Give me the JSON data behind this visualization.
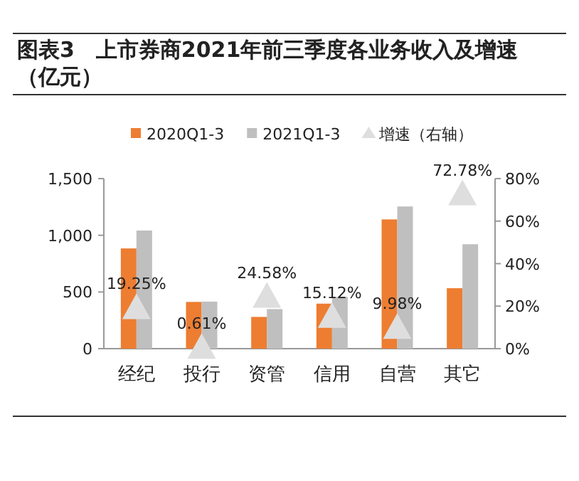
{
  "chart_data": {
    "type": "bar",
    "title": "图表3　上市券商2021年前三季度各业务收入及增速（亿元）",
    "categories": [
      "经纪",
      "投行",
      "资管",
      "信用",
      "自营",
      "其它"
    ],
    "series": [
      {
        "name": "2020Q1-3",
        "color": "#ed7d31",
        "values": [
          884,
          412,
          280,
          397,
          1140,
          533
        ]
      },
      {
        "name": "2021Q1-3",
        "color": "#bfbfbf",
        "values": [
          1042,
          415,
          349,
          457,
          1254,
          921
        ]
      },
      {
        "name": "增速（右轴）",
        "type": "scatter",
        "axis": "y2",
        "marker": "triangle",
        "color": "#dedede",
        "values": [
          19.25,
          0.61,
          24.58,
          15.12,
          9.98,
          72.78
        ],
        "value_labels": [
          "19.25%",
          "0.61%",
          "24.58%",
          "15.12%",
          "9.98%",
          "72.78%"
        ]
      }
    ],
    "ylim": [
      0,
      1500
    ],
    "yticks": [
      0,
      500,
      {
        "value": 1000,
        "label": "1,000"
      },
      {
        "value": 1500,
        "label": "1,500"
      }
    ],
    "y2lim": [
      0,
      80
    ],
    "y2ticks": [
      {
        "value": 0,
        "label": "0%"
      },
      {
        "value": 20,
        "label": "20%"
      },
      {
        "value": 40,
        "label": "40%"
      },
      {
        "value": 60,
        "label": "60%"
      },
      {
        "value": 80,
        "label": "80%"
      }
    ],
    "legend": "top"
  }
}
